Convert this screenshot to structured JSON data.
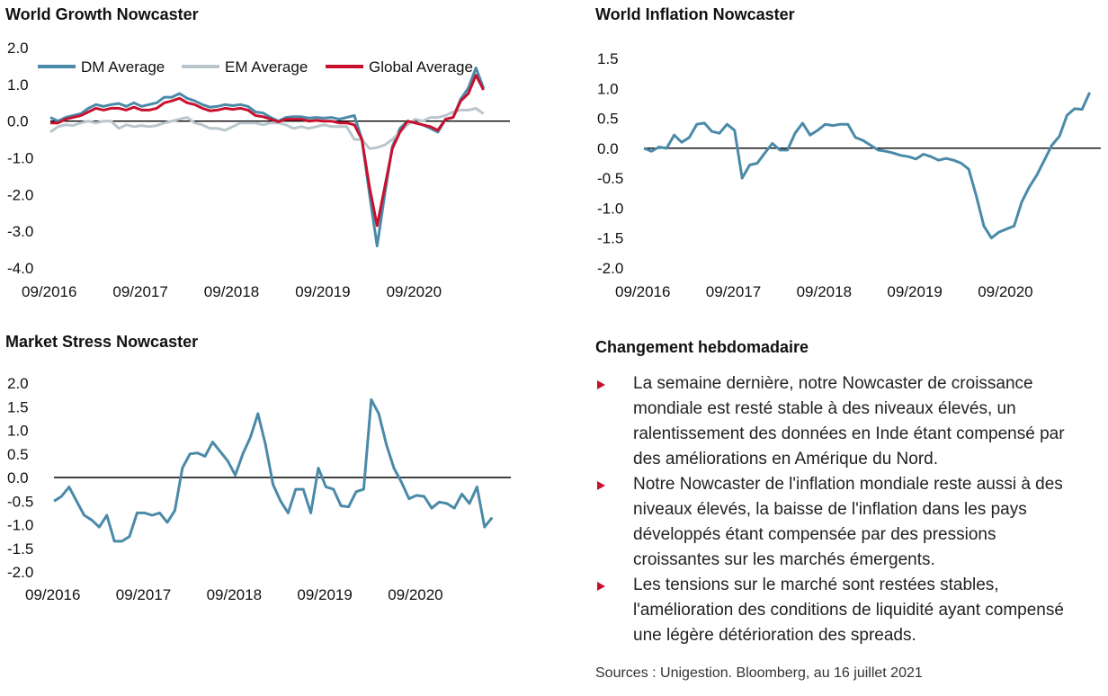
{
  "growth": {
    "title": "World Growth Nowcaster",
    "chart_data": {
      "type": "line",
      "title": "World Growth Nowcaster",
      "ylim": [
        -4.0,
        2.0
      ],
      "yticks": [
        "2.0",
        "1.0",
        "0.0",
        "-1.0",
        "-2.0",
        "-3.0",
        "-4.0"
      ],
      "xticks": [
        "09/2016",
        "09/2017",
        "09/2018",
        "09/2019",
        "09/2020"
      ],
      "x_start_label": "09/2016",
      "points_per_year": 12,
      "legend_position": "top",
      "series": [
        {
          "name": "DM Average",
          "color": "#4a8aa8",
          "values": [
            0.1,
            0.0,
            0.1,
            0.15,
            0.2,
            0.35,
            0.45,
            0.4,
            0.45,
            0.48,
            0.4,
            0.5,
            0.4,
            0.45,
            0.5,
            0.65,
            0.65,
            0.75,
            0.62,
            0.55,
            0.45,
            0.38,
            0.4,
            0.45,
            0.42,
            0.45,
            0.4,
            0.25,
            0.22,
            0.1,
            0.0,
            0.1,
            0.12,
            0.12,
            0.08,
            0.1,
            0.08,
            0.1,
            0.05,
            0.1,
            0.15,
            -0.5,
            -2.0,
            -3.4,
            -2.0,
            -0.7,
            -0.2,
            0.0,
            -0.05,
            -0.1,
            -0.2,
            -0.3,
            0.05,
            0.1,
            0.6,
            0.9,
            1.45,
            0.9
          ]
        },
        {
          "name": "EM Average",
          "color": "#b9c6cc",
          "values": [
            -0.3,
            -0.15,
            -0.1,
            -0.12,
            -0.05,
            0.0,
            -0.05,
            0.0,
            0.0,
            -0.2,
            -0.1,
            -0.15,
            -0.12,
            -0.15,
            -0.12,
            -0.05,
            0.0,
            0.05,
            0.1,
            -0.05,
            -0.1,
            -0.2,
            -0.2,
            -0.25,
            -0.15,
            -0.05,
            -0.05,
            -0.05,
            -0.1,
            -0.05,
            -0.05,
            -0.1,
            -0.2,
            -0.15,
            -0.2,
            -0.15,
            -0.1,
            -0.15,
            -0.15,
            -0.15,
            -0.5,
            -0.5,
            -0.75,
            -0.72,
            -0.65,
            -0.5,
            -0.3,
            -0.1,
            0.05,
            0.0,
            0.1,
            0.1,
            0.15,
            0.25,
            0.3,
            0.3,
            0.35,
            0.2
          ]
        },
        {
          "name": "Global Average",
          "color": "#c8102e",
          "values": [
            -0.05,
            -0.05,
            0.05,
            0.1,
            0.15,
            0.25,
            0.35,
            0.3,
            0.35,
            0.35,
            0.3,
            0.38,
            0.3,
            0.3,
            0.35,
            0.5,
            0.55,
            0.62,
            0.5,
            0.45,
            0.35,
            0.28,
            0.3,
            0.35,
            0.32,
            0.35,
            0.3,
            0.15,
            0.12,
            0.05,
            -0.02,
            0.05,
            0.05,
            0.05,
            0.0,
            0.02,
            0.0,
            0.0,
            -0.05,
            -0.05,
            -0.1,
            -0.5,
            -1.8,
            -2.85,
            -1.8,
            -0.75,
            -0.3,
            0.0,
            -0.05,
            -0.1,
            -0.15,
            -0.25,
            0.05,
            0.1,
            0.55,
            0.75,
            1.25,
            0.85
          ]
        }
      ]
    }
  },
  "inflation": {
    "title": "World Inflation Nowcaster",
    "chart_data": {
      "type": "line",
      "title": "World Inflation Nowcaster",
      "ylim": [
        -2.0,
        1.5
      ],
      "yticks": [
        "1.5",
        "1.0",
        "0.5",
        "0.0",
        "-0.5",
        "-1.0",
        "-1.5",
        "-2.0"
      ],
      "xticks": [
        "09/2016",
        "09/2017",
        "09/2018",
        "09/2019",
        "09/2020"
      ],
      "x_start_label": "09/2016",
      "points_per_year": 12,
      "series": [
        {
          "name": "",
          "color": "#4a8aa8",
          "values": [
            0.0,
            -0.05,
            0.02,
            0.0,
            0.22,
            0.1,
            0.18,
            0.4,
            0.42,
            0.28,
            0.25,
            0.4,
            0.3,
            -0.5,
            -0.28,
            -0.25,
            -0.08,
            0.08,
            -0.03,
            -0.03,
            0.25,
            0.42,
            0.22,
            0.3,
            0.4,
            0.38,
            0.4,
            0.4,
            0.18,
            0.13,
            0.05,
            -0.03,
            -0.05,
            -0.08,
            -0.12,
            -0.14,
            -0.18,
            -0.1,
            -0.14,
            -0.2,
            -0.17,
            -0.2,
            -0.25,
            -0.35,
            -0.8,
            -1.3,
            -1.5,
            -1.4,
            -1.35,
            -1.3,
            -0.9,
            -0.65,
            -0.45,
            -0.2,
            0.05,
            0.2,
            0.55,
            0.66,
            0.65,
            0.93
          ]
        }
      ]
    }
  },
  "stress": {
    "title": "Market Stress Nowcaster",
    "chart_data": {
      "type": "line",
      "title": "Market Stress Nowcaster",
      "ylim": [
        -2.0,
        2.0
      ],
      "yticks": [
        "2.0",
        "1.5",
        "1.0",
        "0.5",
        "0.0",
        "-0.5",
        "-1.0",
        "-1.5",
        "-2.0"
      ],
      "xticks": [
        "09/2016",
        "09/2017",
        "09/2018",
        "09/2019",
        "09/2020"
      ],
      "x_start_label": "09/2016",
      "points_per_year": 12,
      "series": [
        {
          "name": "",
          "color": "#4a8aa8",
          "values": [
            -0.5,
            -0.4,
            -0.2,
            -0.5,
            -0.8,
            -0.9,
            -1.05,
            -0.8,
            -1.35,
            -1.35,
            -1.25,
            -0.75,
            -0.75,
            -0.8,
            -0.75,
            -0.95,
            -0.7,
            0.2,
            0.5,
            0.52,
            0.45,
            0.75,
            0.55,
            0.35,
            0.05,
            0.5,
            0.85,
            1.35,
            0.7,
            -0.15,
            -0.5,
            -0.75,
            -0.25,
            -0.25,
            -0.75,
            0.2,
            -0.2,
            -0.25,
            -0.6,
            -0.62,
            -0.3,
            -0.25,
            1.65,
            1.35,
            0.7,
            0.2,
            -0.1,
            -0.45,
            -0.38,
            -0.4,
            -0.65,
            -0.52,
            -0.55,
            -0.65,
            -0.35,
            -0.55,
            -0.2,
            -1.05,
            -0.85
          ]
        }
      ]
    }
  },
  "commentary": {
    "title": "Changement hebdomadaire",
    "bullets": [
      {
        "lines": [
          "La semaine dernière, notre Nowcaster de croissance",
          "mondiale est resté stable à des niveaux élevés, un",
          "ralentissement des données en Inde étant compensé par",
          "des améliorations en Amérique du Nord."
        ]
      },
      {
        "lines": [
          "Notre Nowcaster de l'inflation mondiale reste aussi à des",
          "niveaux élevés, la baisse de l'inflation dans les pays",
          "développés étant compensée par des pressions",
          "croissantes sur les marchés émergents."
        ]
      },
      {
        "lines": [
          "Les tensions sur le marché sont restées stables,",
          "l'amélioration des conditions de liquidité ayant compensé",
          "une légère détérioration des spreads."
        ]
      }
    ],
    "sources": "Sources : Unigestion. Bloomberg, au 16 juillet 2021"
  },
  "colors": {
    "accent_red": "#c8102e",
    "line_blue": "#4a8aa8",
    "line_grey": "#b9c6cc"
  }
}
